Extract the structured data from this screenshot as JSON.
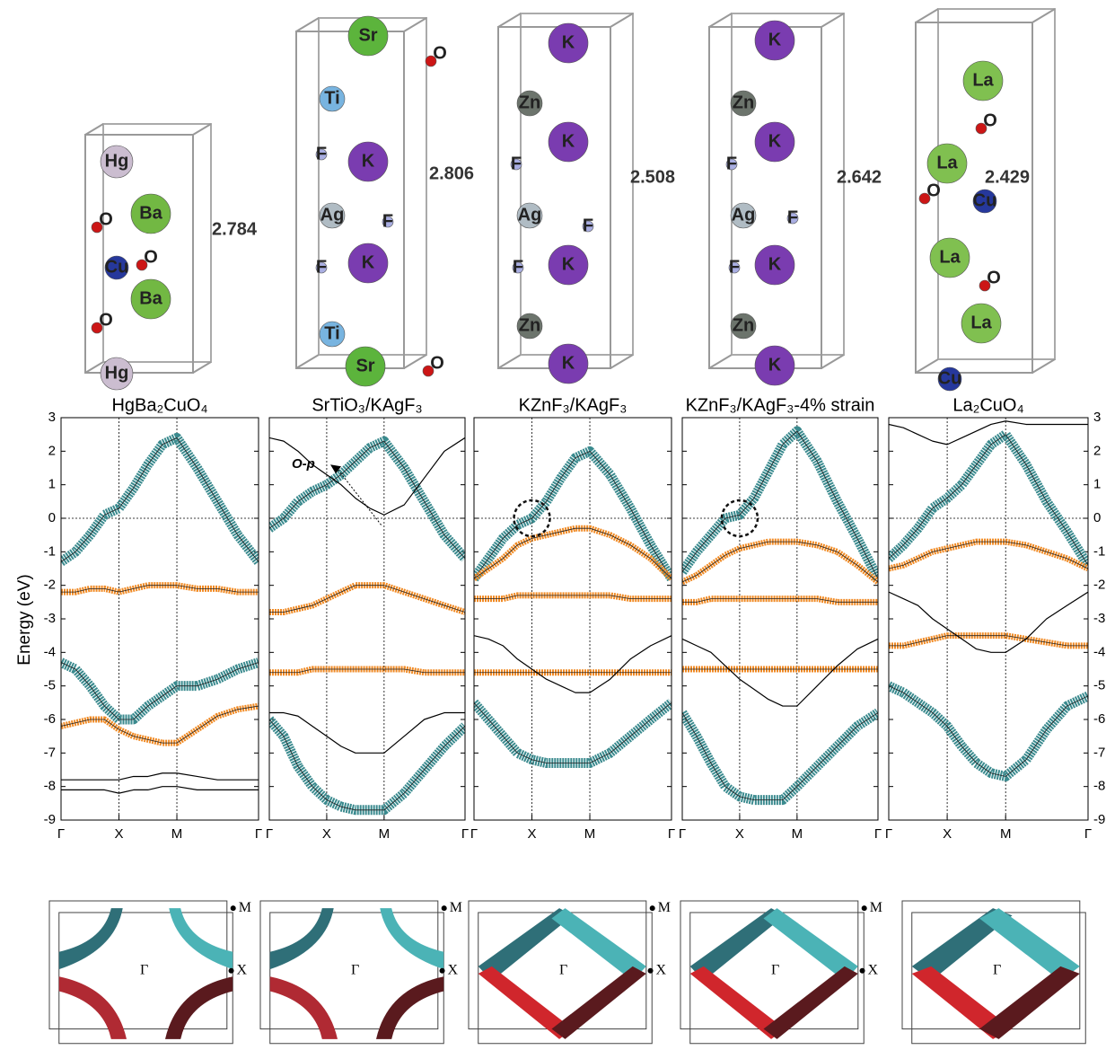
{
  "structures": [
    {
      "bond_length": "2.784",
      "atoms": [
        "Hg",
        "Ba",
        "O",
        "Cu",
        "O",
        "Ba",
        "O",
        "Hg"
      ]
    },
    {
      "bond_length": "2.806",
      "atoms": [
        "Sr",
        "O",
        "Ti",
        "K",
        "F",
        "Ag",
        "F",
        "F",
        "K",
        "Ti",
        "Sr",
        "O"
      ]
    },
    {
      "bond_length": "2.508",
      "atoms": [
        "K",
        "Zn",
        "K",
        "F",
        "Ag",
        "F",
        "F",
        "K",
        "Zn",
        "K"
      ]
    },
    {
      "bond_length": "2.642",
      "atoms": [
        "K",
        "Zn",
        "K",
        "F",
        "Ag",
        "F",
        "F",
        "K",
        "Zn",
        "K"
      ]
    },
    {
      "bond_length": "2.429",
      "atoms": [
        "La",
        "O",
        "La",
        "O",
        "Cu",
        "La",
        "O",
        "La",
        "Cu"
      ]
    }
  ],
  "chart_data": [
    {
      "type": "line",
      "title": "HgBa₂CuO₄",
      "y_label": "Energy (eV)",
      "x": [
        0,
        0.25,
        0.5,
        0.75,
        1,
        1.25,
        1.5,
        1.75,
        2,
        2.35,
        2.7,
        3.05,
        3.41
      ],
      "xlim": [
        0,
        3.41
      ],
      "xticks": [
        {
          "value": 0,
          "label": "Γ"
        },
        {
          "value": 1,
          "label": "X"
        },
        {
          "value": 2,
          "label": "M"
        },
        {
          "value": 3.41,
          "label": "Γ"
        }
      ],
      "ylim": [
        -9,
        3
      ],
      "yticks": [
        -9,
        -8,
        -7,
        -6,
        -5,
        -4,
        -3,
        -2,
        -1,
        0,
        1,
        2,
        3
      ],
      "series": [
        {
          "color": "#3a8a8e",
          "values": [
            -1.3,
            -1.0,
            -0.5,
            0.1,
            0.3,
            0.9,
            1.6,
            2.2,
            2.4,
            1.5,
            0.5,
            -0.5,
            -1.3
          ]
        },
        {
          "color": "#3a8a8e",
          "values": [
            -4.3,
            -4.5,
            -5.0,
            -5.6,
            -6.0,
            -6.0,
            -5.6,
            -5.3,
            -5.0,
            -5.0,
            -4.8,
            -4.5,
            -4.3
          ]
        },
        {
          "color": "#f08a24",
          "values": [
            -2.2,
            -2.2,
            -2.1,
            -2.1,
            -2.2,
            -2.1,
            -2.0,
            -2.0,
            -2.0,
            -2.1,
            -2.1,
            -2.2,
            -2.2
          ]
        },
        {
          "color": "#f08a24",
          "values": [
            -6.2,
            -6.1,
            -6.0,
            -6.0,
            -6.3,
            -6.5,
            -6.6,
            -6.7,
            -6.7,
            -6.3,
            -5.9,
            -5.7,
            -5.6
          ]
        },
        {
          "color": "#000000",
          "values": [
            -7.8,
            -7.8,
            -7.8,
            -7.8,
            -7.8,
            -7.7,
            -7.7,
            -7.6,
            -7.6,
            -7.7,
            -7.8,
            -7.8,
            -7.8
          ]
        },
        {
          "color": "#000000",
          "values": [
            -8.1,
            -8.1,
            -8.1,
            -8.1,
            -8.2,
            -8.1,
            -8.1,
            -8.0,
            -8.0,
            -8.1,
            -8.1,
            -8.1,
            -8.1
          ]
        }
      ]
    },
    {
      "type": "line",
      "title": "SrTiO₃/KAgF₃",
      "annotation": "O-p",
      "x": [
        0,
        0.25,
        0.5,
        0.75,
        1,
        1.25,
        1.5,
        1.75,
        2,
        2.35,
        2.7,
        3.05,
        3.41
      ],
      "xlim": [
        0,
        3.41
      ],
      "xticks": [
        {
          "value": 0,
          "label": "Γ"
        },
        {
          "value": 1,
          "label": "X"
        },
        {
          "value": 2,
          "label": "M"
        },
        {
          "value": 3.41,
          "label": "Γ"
        }
      ],
      "ylim": [
        -9,
        3
      ],
      "yticks": [
        -9,
        -8,
        -7,
        -6,
        -5,
        -4,
        -3,
        -2,
        -1,
        0,
        1,
        2,
        3
      ],
      "series": [
        {
          "color": "#3a8a8e",
          "values": [
            -0.3,
            0.0,
            0.5,
            0.8,
            1.0,
            1.3,
            1.7,
            2.1,
            2.3,
            1.5,
            0.5,
            -0.5,
            -1.2
          ]
        },
        {
          "color": "#3a8a8e",
          "values": [
            -6.0,
            -6.5,
            -7.4,
            -8.0,
            -8.4,
            -8.6,
            -8.7,
            -8.7,
            -8.7,
            -8.2,
            -7.5,
            -6.8,
            -6.2
          ]
        },
        {
          "color": "#f08a24",
          "values": [
            -2.8,
            -2.8,
            -2.7,
            -2.6,
            -2.4,
            -2.2,
            -2.0,
            -2.0,
            -2.0,
            -2.2,
            -2.4,
            -2.6,
            -2.8
          ]
        },
        {
          "color": "#f08a24",
          "values": [
            -4.6,
            -4.6,
            -4.6,
            -4.5,
            -4.5,
            -4.5,
            -4.5,
            -4.5,
            -4.5,
            -4.5,
            -4.6,
            -4.6,
            -4.6
          ]
        },
        {
          "color": "#000000",
          "values": [
            2.4,
            2.3,
            2.0,
            1.6,
            1.3,
            1.0,
            0.6,
            0.3,
            0.1,
            0.4,
            1.2,
            2.0,
            2.4
          ]
        },
        {
          "color": "#000000",
          "values": [
            -5.8,
            -5.8,
            -5.9,
            -6.2,
            -6.5,
            -6.8,
            -7.0,
            -7.0,
            -7.0,
            -6.5,
            -6.0,
            -5.8,
            -5.8
          ]
        }
      ]
    },
    {
      "type": "line",
      "title": "KZnF₃/KAgF₃",
      "x": [
        0,
        0.25,
        0.5,
        0.75,
        1,
        1.25,
        1.5,
        1.75,
        2,
        2.35,
        2.7,
        3.05,
        3.41
      ],
      "xlim": [
        0,
        3.41
      ],
      "xticks": [
        {
          "value": 0,
          "label": "Γ"
        },
        {
          "value": 1,
          "label": "X"
        },
        {
          "value": 2,
          "label": "M"
        },
        {
          "value": 3.41,
          "label": "Γ"
        }
      ],
      "ylim": [
        -9,
        3
      ],
      "yticks": [
        -9,
        -8,
        -7,
        -6,
        -5,
        -4,
        -3,
        -2,
        -1,
        0,
        1,
        2,
        3
      ],
      "series": [
        {
          "color": "#3a8a8e",
          "values": [
            -1.8,
            -1.2,
            -0.6,
            -0.2,
            0.0,
            0.5,
            1.2,
            1.8,
            2.0,
            1.3,
            0.3,
            -0.8,
            -1.8
          ]
        },
        {
          "color": "#3a8a8e",
          "values": [
            -5.5,
            -6.0,
            -6.5,
            -7.0,
            -7.2,
            -7.3,
            -7.3,
            -7.3,
            -7.3,
            -7.0,
            -6.5,
            -6.0,
            -5.5
          ]
        },
        {
          "color": "#f08a24",
          "values": [
            -1.8,
            -1.5,
            -1.2,
            -0.8,
            -0.6,
            -0.5,
            -0.4,
            -0.3,
            -0.3,
            -0.5,
            -0.8,
            -1.2,
            -1.8
          ]
        },
        {
          "color": "#f08a24",
          "values": [
            -2.4,
            -2.4,
            -2.4,
            -2.3,
            -2.3,
            -2.3,
            -2.3,
            -2.3,
            -2.3,
            -2.3,
            -2.4,
            -2.4,
            -2.4
          ]
        },
        {
          "color": "#f08a24",
          "values": [
            -4.6,
            -4.6,
            -4.6,
            -4.6,
            -4.6,
            -4.6,
            -4.6,
            -4.6,
            -4.6,
            -4.6,
            -4.6,
            -4.6,
            -4.6
          ]
        },
        {
          "color": "#000000",
          "values": [
            -3.5,
            -3.6,
            -3.8,
            -4.2,
            -4.5,
            -4.8,
            -5.0,
            -5.2,
            -5.2,
            -4.8,
            -4.2,
            -3.8,
            -3.5
          ]
        }
      ]
    },
    {
      "type": "line",
      "title": "KZnF₃/KAgF₃-4% strain",
      "x": [
        0,
        0.25,
        0.5,
        0.75,
        1,
        1.25,
        1.5,
        1.75,
        2,
        2.35,
        2.7,
        3.05,
        3.41
      ],
      "xlim": [
        0,
        3.41
      ],
      "xticks": [
        {
          "value": 0,
          "label": "Γ"
        },
        {
          "value": 1,
          "label": "X"
        },
        {
          "value": 2,
          "label": "M"
        },
        {
          "value": 3.41,
          "label": "Γ"
        }
      ],
      "ylim": [
        -9,
        3
      ],
      "yticks": [
        -9,
        -8,
        -7,
        -6,
        -5,
        -4,
        -3,
        -2,
        -1,
        0,
        1,
        2,
        3
      ],
      "series": [
        {
          "color": "#3a8a8e",
          "values": [
            -1.6,
            -1.0,
            -0.5,
            0.0,
            0.1,
            0.6,
            1.4,
            2.2,
            2.6,
            1.7,
            0.5,
            -0.6,
            -1.8
          ]
        },
        {
          "color": "#3a8a8e",
          "values": [
            -5.8,
            -6.5,
            -7.3,
            -8.0,
            -8.3,
            -8.4,
            -8.4,
            -8.4,
            -8.0,
            -7.4,
            -6.8,
            -6.2,
            -5.8
          ]
        },
        {
          "color": "#f08a24",
          "values": [
            -1.9,
            -1.7,
            -1.4,
            -1.1,
            -0.9,
            -0.8,
            -0.7,
            -0.7,
            -0.7,
            -0.8,
            -1.0,
            -1.4,
            -1.9
          ]
        },
        {
          "color": "#f08a24",
          "values": [
            -2.5,
            -2.5,
            -2.4,
            -2.4,
            -2.4,
            -2.4,
            -2.4,
            -2.4,
            -2.4,
            -2.4,
            -2.5,
            -2.5,
            -2.5
          ]
        },
        {
          "color": "#f08a24",
          "values": [
            -4.5,
            -4.5,
            -4.5,
            -4.5,
            -4.5,
            -4.5,
            -4.5,
            -4.5,
            -4.5,
            -4.5,
            -4.5,
            -4.5,
            -4.5
          ]
        },
        {
          "color": "#000000",
          "values": [
            -3.6,
            -3.8,
            -4.0,
            -4.4,
            -4.8,
            -5.1,
            -5.4,
            -5.6,
            -5.6,
            -5.0,
            -4.4,
            -3.9,
            -3.6
          ]
        }
      ]
    },
    {
      "type": "line",
      "title": "La₂CuO₄",
      "x": [
        0,
        0.25,
        0.5,
        0.75,
        1,
        1.25,
        1.5,
        1.75,
        2,
        2.35,
        2.7,
        3.05,
        3.41
      ],
      "xlim": [
        0,
        3.41
      ],
      "xticks": [
        {
          "value": 0,
          "label": "Γ"
        },
        {
          "value": 1,
          "label": "X"
        },
        {
          "value": 2,
          "label": "M"
        },
        {
          "value": 3.41,
          "label": "Γ"
        }
      ],
      "ylim": [
        -9,
        3
      ],
      "yticks": [
        -9,
        -8,
        -7,
        -6,
        -5,
        -4,
        -3,
        -2,
        -1,
        0,
        1,
        2,
        3
      ],
      "series": [
        {
          "color": "#3a8a8e",
          "values": [
            -1.2,
            -0.8,
            -0.3,
            0.3,
            0.6,
            1.0,
            1.6,
            2.2,
            2.5,
            1.6,
            0.5,
            -0.4,
            -1.4
          ]
        },
        {
          "color": "#3a8a8e",
          "values": [
            -5.0,
            -5.2,
            -5.5,
            -5.8,
            -6.2,
            -6.8,
            -7.3,
            -7.6,
            -7.7,
            -7.2,
            -6.3,
            -5.6,
            -5.3
          ]
        },
        {
          "color": "#f08a24",
          "values": [
            -1.5,
            -1.4,
            -1.2,
            -1.0,
            -0.9,
            -0.8,
            -0.7,
            -0.7,
            -0.7,
            -0.8,
            -1.0,
            -1.2,
            -1.5
          ]
        },
        {
          "color": "#f08a24",
          "values": [
            -3.8,
            -3.8,
            -3.7,
            -3.6,
            -3.5,
            -3.5,
            -3.5,
            -3.5,
            -3.5,
            -3.6,
            -3.7,
            -3.8,
            -3.8
          ]
        },
        {
          "color": "#000000",
          "values": [
            2.8,
            2.7,
            2.5,
            2.3,
            2.2,
            2.4,
            2.6,
            2.8,
            2.9,
            2.8,
            2.8,
            2.8,
            2.8
          ]
        },
        {
          "color": "#000000",
          "values": [
            -2.2,
            -2.4,
            -2.6,
            -3.0,
            -3.3,
            -3.6,
            -3.9,
            -4.0,
            -4.0,
            -3.6,
            -3.0,
            -2.6,
            -2.2
          ]
        }
      ]
    }
  ],
  "fermi_surfaces": [
    {
      "labels": [
        "M",
        "X",
        "Γ"
      ]
    },
    {
      "labels": [
        "M",
        "X",
        "Γ"
      ]
    },
    {
      "labels": [
        "M",
        "X",
        "Γ"
      ]
    },
    {
      "labels": [
        "M",
        "X",
        "Γ"
      ]
    },
    {
      "labels": [
        "Γ"
      ]
    }
  ]
}
